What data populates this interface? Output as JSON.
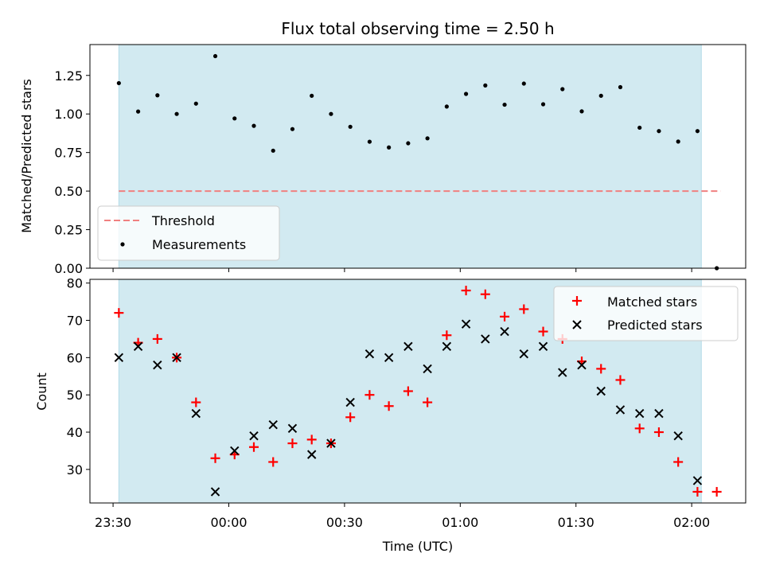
{
  "chart_data": [
    {
      "type": "scatter",
      "title": "Flux total observing time = 2.50 h",
      "ylabel": "Matched/Predicted stars",
      "xlabel": "",
      "ylim": [
        0,
        1.45
      ],
      "yticks": [
        {
          "value": 0,
          "label": "0.00"
        },
        {
          "value": 0.25,
          "label": "0.25"
        },
        {
          "value": 0.5,
          "label": "0.50"
        },
        {
          "value": 0.75,
          "label": "0.75"
        },
        {
          "value": 1.0,
          "label": "1.00"
        },
        {
          "value": 1.25,
          "label": "1.25"
        }
      ],
      "shaded_span": {
        "start": "23:31:30",
        "end": "02:02:30",
        "color": "#add8e6"
      },
      "threshold": {
        "name": "Threshold",
        "value": 0.5,
        "x_start": "23:31:30",
        "x_end": "02:07:30",
        "color": "#f08080",
        "style": "dashed"
      },
      "series": [
        {
          "name": "Measurements",
          "color": "#000000",
          "marker": "dot",
          "x": [
            "23:31:30",
            "23:36:30",
            "23:41:30",
            "23:46:30",
            "23:51:30",
            "23:56:30",
            "00:01:30",
            "00:06:30",
            "00:11:30",
            "00:16:30",
            "00:21:30",
            "00:26:30",
            "00:31:30",
            "00:36:30",
            "00:41:30",
            "00:46:30",
            "00:51:30",
            "00:56:30",
            "01:01:30",
            "01:06:30",
            "01:11:30",
            "01:16:30",
            "01:21:30",
            "01:26:30",
            "01:31:30",
            "01:36:30",
            "01:41:30",
            "01:46:30",
            "01:51:30",
            "01:56:30",
            "02:01:30",
            "02:06:30"
          ],
          "values": [
            1.2,
            1.016,
            1.121,
            1.0,
            1.067,
            1.375,
            0.971,
            0.923,
            0.762,
            0.902,
            1.118,
            1.0,
            0.917,
            0.82,
            0.783,
            0.81,
            0.842,
            1.048,
            1.13,
            1.185,
            1.06,
            1.197,
            1.063,
            1.161,
            1.017,
            1.118,
            1.174,
            0.911,
            0.889,
            0.821,
            0.889,
            0.0
          ]
        }
      ],
      "legend": {
        "position": "lower-left",
        "entries": [
          "Threshold",
          "Measurements"
        ]
      }
    },
    {
      "type": "scatter",
      "title": "",
      "xlabel": "Time (UTC)",
      "ylabel": "Count",
      "xlim": [
        "23:24:00",
        "02:14:00"
      ],
      "ylim": [
        21,
        81
      ],
      "yticks": [
        30,
        40,
        50,
        60,
        70,
        80
      ],
      "xticks": [
        "23:30",
        "00:00",
        "00:30",
        "01:00",
        "01:30",
        "02:00"
      ],
      "shaded_span": {
        "start": "23:31:30",
        "end": "02:02:30",
        "color": "#add8e6"
      },
      "series": [
        {
          "name": "Matched stars",
          "color": "#ff0000",
          "marker": "plus",
          "x": [
            "23:31:30",
            "23:36:30",
            "23:41:30",
            "23:46:30",
            "23:51:30",
            "23:56:30",
            "00:01:30",
            "00:06:30",
            "00:11:30",
            "00:16:30",
            "00:21:30",
            "00:26:30",
            "00:31:30",
            "00:36:30",
            "00:41:30",
            "00:46:30",
            "00:51:30",
            "00:56:30",
            "01:01:30",
            "01:06:30",
            "01:11:30",
            "01:16:30",
            "01:21:30",
            "01:26:30",
            "01:31:30",
            "01:36:30",
            "01:41:30",
            "01:46:30",
            "01:51:30",
            "01:56:30",
            "02:01:30",
            "02:06:30"
          ],
          "values": [
            72,
            64,
            65,
            60,
            48,
            33,
            34,
            36,
            32,
            37,
            38,
            37,
            44,
            50,
            47,
            51,
            48,
            66,
            78,
            77,
            71,
            73,
            67,
            65,
            59,
            57,
            54,
            41,
            40,
            32,
            24,
            24
          ]
        },
        {
          "name": "Predicted stars",
          "color": "#000000",
          "marker": "x",
          "x": [
            "23:31:30",
            "23:36:30",
            "23:41:30",
            "23:46:30",
            "23:51:30",
            "23:56:30",
            "00:01:30",
            "00:06:30",
            "00:11:30",
            "00:16:30",
            "00:21:30",
            "00:26:30",
            "00:31:30",
            "00:36:30",
            "00:41:30",
            "00:46:30",
            "00:51:30",
            "00:56:30",
            "01:01:30",
            "01:06:30",
            "01:11:30",
            "01:16:30",
            "01:21:30",
            "01:26:30",
            "01:31:30",
            "01:36:30",
            "01:41:30",
            "01:46:30",
            "01:51:30",
            "01:56:30",
            "02:01:30"
          ],
          "values": [
            60,
            63,
            58,
            60,
            45,
            24,
            35,
            39,
            42,
            41,
            34,
            37,
            48,
            61,
            60,
            63,
            57,
            63,
            69,
            65,
            67,
            61,
            63,
            56,
            58,
            51,
            46,
            45,
            45,
            39,
            27
          ]
        }
      ],
      "legend": {
        "position": "upper-right",
        "entries": [
          "Matched stars",
          "Predicted stars"
        ]
      }
    }
  ]
}
